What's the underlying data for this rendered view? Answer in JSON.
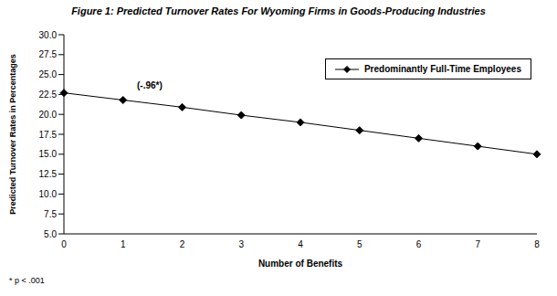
{
  "chart_data": {
    "type": "line",
    "title": "Figure 1: Predicted Turnover Rates For Wyoming Firms in Goods-Producing Industries",
    "x_label": "Number of Benefits",
    "y_label": "Predicted Turnover Rates in Percentages",
    "categories": [
      "0",
      "1",
      "2",
      "3",
      "4",
      "5",
      "6",
      "7",
      "8"
    ],
    "series": [
      {
        "name": "Predominantly Full-Time Employees",
        "color": "#000000",
        "marker": "diamond",
        "values": [
          22.7,
          21.8,
          20.9,
          19.9,
          19.0,
          18.0,
          17.0,
          16.0,
          15.0
        ]
      }
    ],
    "ylim": [
      5,
      30
    ],
    "yticks": [
      {
        "value": 5,
        "label": "5.0"
      },
      7.5,
      {
        "value": 10,
        "label": "10.0"
      },
      12.5,
      {
        "value": 15,
        "label": "15.0"
      },
      17.5,
      {
        "value": 20,
        "label": "20.0"
      },
      22.5,
      {
        "value": 25,
        "label": "25.0"
      },
      27.5,
      {
        "value": 30,
        "label": "30.0"
      }
    ],
    "annotation": "(-.96*)",
    "footnote": "* p < .001",
    "legend": "top-right",
    "grid": false
  }
}
